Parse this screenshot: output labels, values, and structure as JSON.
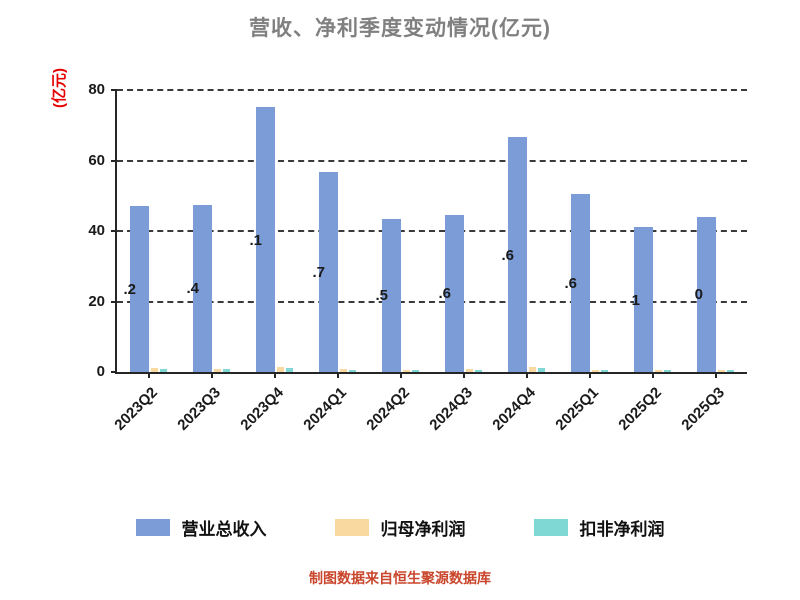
{
  "title": "营收、净利季度变动情况(亿元)",
  "footer": "制图数据来自恒生聚源数据库",
  "colors": {
    "axis": "#262626",
    "title": "#808080",
    "ylabel": "#e60000",
    "footer": "#c9452b",
    "tick_label": "#1a1a1a",
    "revenue_bar": "#7B9CD6",
    "net_profit_bar": "#FAD9A1",
    "deducted_profit_bar": "#7FD8D4"
  },
  "chart_data": {
    "type": "bar",
    "title": "营收、净利季度变动情况(亿元)",
    "xlabel": "",
    "ylabel": "(亿元)",
    "ylim": [
      0,
      80
    ],
    "yticks": [
      0,
      20,
      40,
      60,
      80
    ],
    "grid": "dashed-horizontal",
    "legend_position": "bottom",
    "categories": [
      "2023Q2",
      "2023Q3",
      "2023Q4",
      "2024Q1",
      "2024Q2",
      "2024Q3",
      "2024Q4",
      "2025Q1",
      "2025Q2",
      "2025Q3"
    ],
    "series": [
      {
        "name": "营业总收入",
        "color": "#7B9CD6",
        "values": [
          47.2,
          47.4,
          75.1,
          56.7,
          43.5,
          44.6,
          66.6,
          50.6,
          41.1,
          44.0
        ],
        "visible_value_labels": [
          ".2",
          ".4",
          ".1",
          ".7",
          ".5",
          ".6",
          ".6",
          ".6",
          "1",
          "0"
        ]
      },
      {
        "name": "归母净利润",
        "color": "#FAD9A1",
        "values": [
          1.0,
          0.9,
          1.3,
          0.8,
          0.6,
          0.8,
          1.4,
          0.7,
          0.5,
          0.6
        ]
      },
      {
        "name": "扣非净利润",
        "color": "#7FD8D4",
        "values": [
          0.9,
          0.8,
          1.1,
          0.7,
          0.5,
          0.7,
          1.2,
          0.6,
          0.4,
          0.5
        ]
      }
    ]
  }
}
